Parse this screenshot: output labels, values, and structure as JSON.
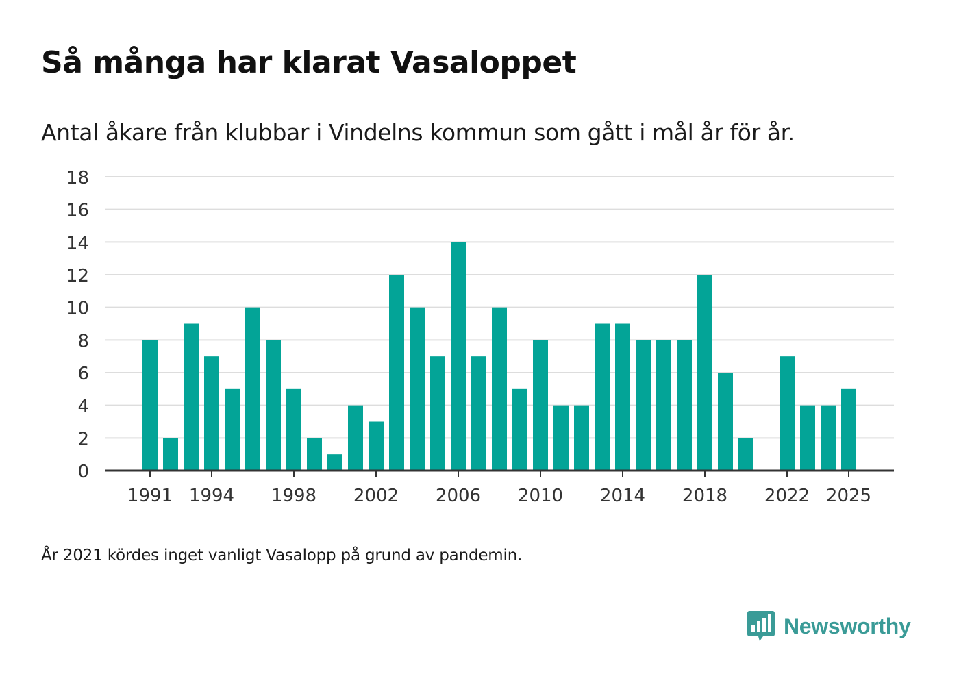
{
  "title": "Så många har klarat Vasaloppet",
  "subtitle": "Antal åkare från klubbar i Vindelns kommun som gått i mål år för år.",
  "footnote": "År 2021 kördes inget vanligt Vasalopp på grund av pandemin.",
  "brand": {
    "name": "Newsworthy",
    "icon": "bar-chart-speech-bubble-icon",
    "color": "#3a9b97"
  },
  "colors": {
    "bar": "#03a497",
    "grid": "#dddddd",
    "axis": "#333333",
    "text": "#333333"
  },
  "chart_data": {
    "type": "bar",
    "title": "Så många har klarat Vasaloppet",
    "xlabel": "",
    "ylabel": "",
    "ylim": [
      0,
      18
    ],
    "yticks": [
      0,
      2,
      4,
      6,
      8,
      10,
      12,
      14,
      16,
      18
    ],
    "xticks": [
      1991,
      1994,
      1998,
      2002,
      2006,
      2010,
      2014,
      2018,
      2022,
      2025
    ],
    "grid": true,
    "categories": [
      1991,
      1992,
      1993,
      1994,
      1995,
      1996,
      1997,
      1998,
      1999,
      2000,
      2001,
      2002,
      2003,
      2004,
      2005,
      2006,
      2007,
      2008,
      2009,
      2010,
      2011,
      2012,
      2013,
      2014,
      2015,
      2016,
      2017,
      2018,
      2019,
      2020,
      2021,
      2022,
      2023,
      2024,
      2025
    ],
    "values": [
      8,
      2,
      9,
      7,
      5,
      10,
      8,
      5,
      2,
      1,
      4,
      3,
      12,
      10,
      7,
      14,
      7,
      10,
      5,
      8,
      4,
      4,
      9,
      9,
      8,
      8,
      8,
      12,
      6,
      2,
      null,
      7,
      4,
      4,
      5
    ]
  }
}
